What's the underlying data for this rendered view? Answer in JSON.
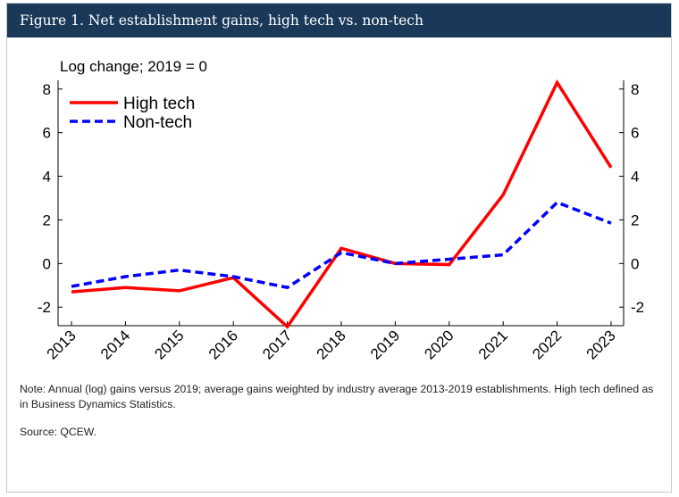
{
  "title": "Figure 1. Net establishment gains, high tech vs. non-tech",
  "note": "Note: Annual (log) gains versus 2019; average gains weighted by industry average 2013-2019 establishments. High tech defined as in Business Dynamics Statistics.",
  "source": "Source: QCEW.",
  "chart_data": {
    "type": "line",
    "title": "Figure 1. Net establishment gains, high tech vs. non-tech",
    "ylabel": "Log change; 2019 = 0",
    "xlabel": "",
    "x": [
      "2013",
      "2014",
      "2015",
      "2016",
      "2017",
      "2018",
      "2019",
      "2020",
      "2021",
      "2022",
      "2023"
    ],
    "yticks": [
      -2,
      0,
      2,
      4,
      6,
      8
    ],
    "ylim": [
      -2.85,
      8.4
    ],
    "grid": false,
    "legend": "top-left",
    "series": [
      {
        "name": "High tech",
        "color": "#ff0000",
        "style": "solid",
        "values": [
          -1.3,
          -1.1,
          -1.25,
          -0.65,
          -2.9,
          0.7,
          0,
          -0.05,
          3.15,
          8.3,
          4.4
        ]
      },
      {
        "name": "Non-tech",
        "color": "#0000ff",
        "style": "dashed",
        "values": [
          -1.05,
          -0.6,
          -0.3,
          -0.6,
          -1.1,
          0.5,
          0,
          0.2,
          0.4,
          2.8,
          1.85
        ]
      }
    ]
  }
}
